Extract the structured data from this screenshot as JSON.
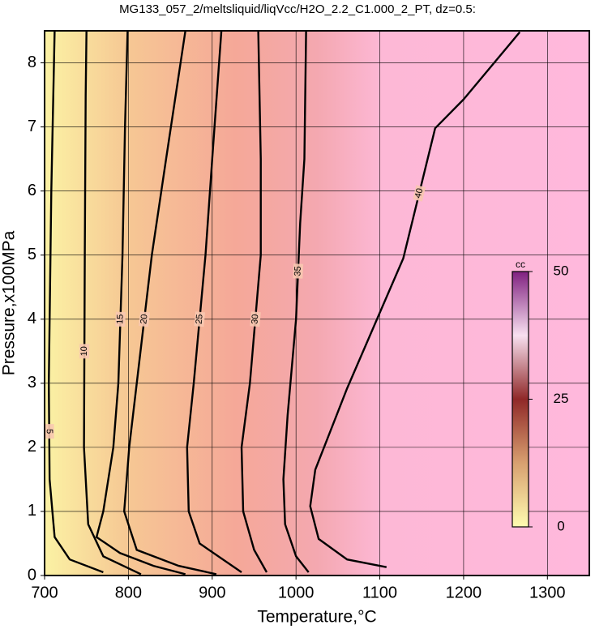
{
  "chart_data": {
    "type": "contour",
    "title": "MG133_057_2/meltsliquid/liqVcc/H2O_2.2_C1.000_2_PT, dz=0.5:",
    "xlabel": "Temperature,°C",
    "ylabel": "Pressure,x100MPa",
    "xlim": [
      700,
      1350
    ],
    "ylim": [
      0,
      8.5
    ],
    "xticks": [
      700,
      800,
      900,
      1000,
      1100,
      1200,
      1300
    ],
    "yticks": [
      0,
      1,
      2,
      3,
      4,
      5,
      6,
      7,
      8
    ],
    "grid": true,
    "line_color": "#000000",
    "contours": [
      {
        "level": 5,
        "x": [
          712,
          708,
          705,
          706,
          712,
          730,
          770
        ],
        "y": [
          8.5,
          6,
          3,
          1.5,
          0.6,
          0.25,
          0.05
        ]
      },
      {
        "level": 10,
        "x": [
          750,
          749,
          748,
          747,
          752,
          770,
          815
        ],
        "y": [
          8.5,
          7.5,
          5,
          2,
          0.8,
          0.3,
          0.02
        ]
      },
      {
        "level": 15,
        "x": [
          799,
          796,
          793,
          788,
          782,
          770,
          762,
          790,
          830,
          868
        ],
        "y": [
          8.5,
          7,
          5,
          3,
          2,
          1,
          0.6,
          0.35,
          0.15,
          0.02
        ]
      },
      {
        "level": 20,
        "x": [
          868,
          845,
          828,
          810,
          801,
          795,
          810,
          860,
          905
        ],
        "y": [
          8.5,
          6.5,
          5,
          3,
          2,
          1,
          0.4,
          0.15,
          0.02
        ]
      },
      {
        "level": 25,
        "x": [
          911,
          900,
          892,
          878,
          870,
          872,
          885,
          935
        ],
        "y": [
          8.5,
          6.5,
          5,
          3,
          2,
          1,
          0.5,
          0.05
        ]
      },
      {
        "level": 30,
        "x": [
          955,
          958,
          958,
          945,
          935,
          937,
          950,
          965
        ],
        "y": [
          8.5,
          6.5,
          5,
          3,
          2,
          1,
          0.4,
          0.05
        ]
      },
      {
        "level": 35,
        "x": [
          1012,
          1010,
          1005,
          1000,
          990,
          985,
          987,
          1000,
          1015
        ],
        "y": [
          8.5,
          6.5,
          5.5,
          4,
          2.5,
          1.5,
          0.8,
          0.3,
          0.05
        ]
      },
      {
        "level": 40,
        "x": [
          1267,
          1200,
          1166,
          1128,
          1061,
          1023,
          1017,
          1027,
          1061,
          1108
        ],
        "y": [
          8.48,
          7.43,
          6.98,
          4.95,
          2.92,
          1.65,
          1.08,
          0.57,
          0.25,
          0.13
        ]
      }
    ],
    "colorbar": {
      "label": "cc",
      "clim": [
        0,
        50
      ],
      "ticks": [
        0,
        25,
        50
      ],
      "colormap": [
        "#fffcb0",
        "#d8a070",
        "#902828",
        "#f8e0f0",
        "#802080"
      ]
    }
  }
}
